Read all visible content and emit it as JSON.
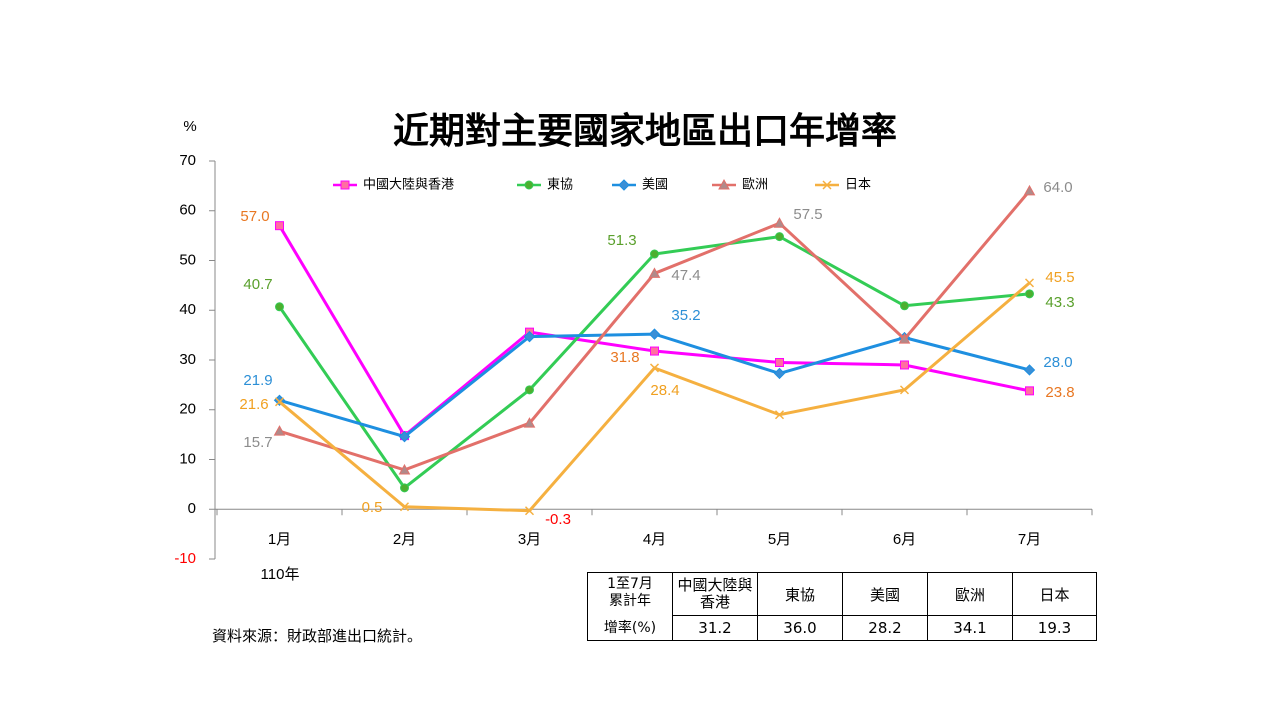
{
  "chart_data": {
    "type": "line",
    "title": "近期對主要國家地區出口年增率",
    "y_label": "%",
    "x_note": "110年",
    "categories": [
      "1月",
      "2月",
      "3月",
      "4月",
      "5月",
      "6月",
      "7月"
    ],
    "ylim": [
      -10,
      70
    ],
    "yticks": [
      -10,
      0,
      10,
      20,
      30,
      40,
      50,
      60,
      70
    ],
    "negative_color": "#ff0000",
    "series": [
      {
        "name": "中國大陸與香港",
        "color": "#ff00ff",
        "marker": "square",
        "marker_fill": "#ff6fa0",
        "label_color": "#e87722",
        "values": [
          57.0,
          14.8,
          35.6,
          31.8,
          29.5,
          29.0,
          23.8
        ],
        "value_labels": [
          "57.0",
          null,
          null,
          "31.8",
          null,
          null,
          "23.8"
        ]
      },
      {
        "name": "東協",
        "color": "#33cc55",
        "marker": "circle",
        "marker_fill": "#4caf30",
        "label_color": "#5aa02c",
        "values": [
          40.7,
          4.3,
          24.0,
          51.3,
          54.8,
          40.9,
          43.3
        ],
        "value_labels": [
          "40.7",
          null,
          null,
          "51.3",
          null,
          null,
          "43.3"
        ]
      },
      {
        "name": "美國",
        "color": "#1e8fe0",
        "marker": "diamond",
        "marker_fill": "#3a8fd6",
        "label_color": "#2c8fd6",
        "values": [
          21.9,
          14.6,
          34.7,
          35.2,
          27.3,
          34.5,
          28.0
        ],
        "value_labels": [
          "21.9",
          null,
          null,
          "35.2",
          null,
          null,
          "28.0"
        ]
      },
      {
        "name": "歐洲",
        "color": "#e2706a",
        "marker": "triangle",
        "marker_fill": "#b08a8a",
        "label_color": "#8c8c8c",
        "values": [
          15.7,
          7.9,
          17.3,
          47.4,
          57.5,
          34.2,
          64.0
        ],
        "value_labels": [
          "15.7",
          null,
          null,
          "47.4",
          "57.5",
          null,
          "64.0"
        ]
      },
      {
        "name": "日本",
        "color": "#f5b040",
        "marker": "x",
        "marker_fill": "#f5b040",
        "label_color": "#f0a020",
        "values": [
          21.6,
          0.5,
          -0.3,
          28.4,
          19.0,
          24.0,
          45.5
        ],
        "value_labels": [
          "21.6",
          "0.5",
          "-0.3",
          "28.4",
          null,
          null,
          "45.5"
        ]
      }
    ]
  },
  "table": {
    "row_header": [
      "1至7月",
      "累計年",
      "增率(%)"
    ],
    "columns": [
      "中國大陸與香港",
      "東協",
      "美國",
      "歐洲",
      "日本"
    ],
    "values": [
      "31.2",
      "36.0",
      "28.2",
      "34.1",
      "19.3"
    ]
  },
  "source": "資料來源：財政部進出口統計。"
}
